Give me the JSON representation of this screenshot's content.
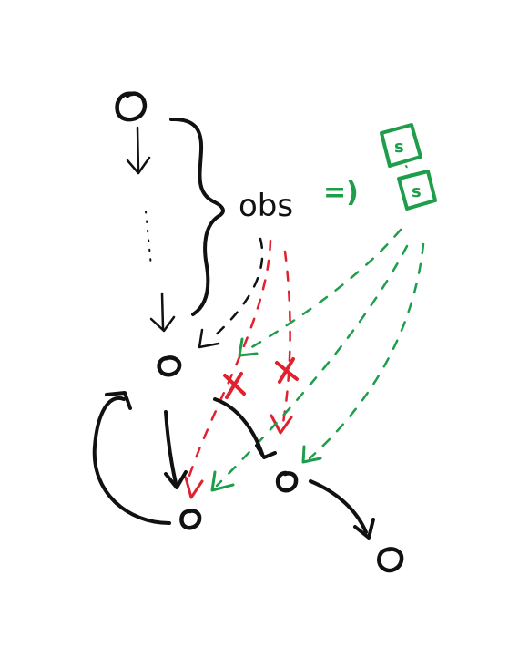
{
  "diagram": {
    "obs_label": "obs",
    "implies_symbol": "=)",
    "state_labels": [
      "s",
      "s"
    ],
    "colors": {
      "ink": "#111111",
      "valid_transition": "#1e9e4a",
      "invalid_transition": "#e0212f",
      "background": "#ffffff"
    },
    "nodes": [
      "start",
      "current",
      "loop",
      "branch",
      "end"
    ],
    "markers": [
      "red-x",
      "red-x"
    ]
  }
}
